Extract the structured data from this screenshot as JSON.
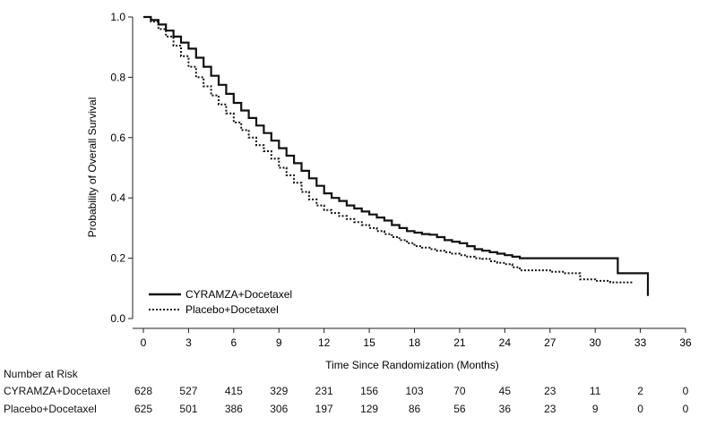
{
  "chart_data": {
    "type": "line",
    "title": "",
    "xlabel": "Time Since Randomization (Months)",
    "ylabel": "Probability of Overall Survival",
    "xlim": [
      0,
      36
    ],
    "ylim": [
      0,
      1.0
    ],
    "x_ticks": [
      0,
      3,
      6,
      9,
      12,
      15,
      18,
      21,
      24,
      27,
      30,
      33,
      36
    ],
    "y_ticks": [
      0.0,
      0.2,
      0.4,
      0.6,
      0.8,
      1.0
    ],
    "y_tick_labels": [
      "0.0",
      "0.2",
      "0.4",
      "0.6",
      "0.8",
      "1.0"
    ],
    "grid": false,
    "legend_position": "bottom-left",
    "series": [
      {
        "name": "CYRAMZA+Docetaxel",
        "style": "solid",
        "color": "#111111",
        "step": true,
        "x": [
          0,
          0.5,
          1,
          1.5,
          2,
          2.5,
          3,
          3.5,
          4,
          4.5,
          5,
          5.5,
          6,
          6.5,
          7,
          7.5,
          8,
          8.5,
          9,
          9.5,
          10,
          10.5,
          11,
          11.5,
          12,
          12.5,
          13,
          13.5,
          14,
          14.5,
          15,
          15.5,
          16,
          16.5,
          17,
          17.5,
          18,
          18.5,
          19,
          19.5,
          20,
          20.5,
          21,
          21.5,
          22,
          22.5,
          23,
          23.5,
          24,
          24.5,
          25,
          26,
          27,
          28,
          29,
          30,
          31.5,
          31.5,
          33.5,
          33.5
        ],
        "y": [
          1.0,
          0.99,
          0.975,
          0.955,
          0.935,
          0.915,
          0.895,
          0.865,
          0.835,
          0.805,
          0.775,
          0.745,
          0.715,
          0.69,
          0.665,
          0.64,
          0.615,
          0.59,
          0.565,
          0.54,
          0.515,
          0.49,
          0.465,
          0.44,
          0.415,
          0.4,
          0.39,
          0.375,
          0.365,
          0.355,
          0.345,
          0.335,
          0.325,
          0.31,
          0.3,
          0.29,
          0.285,
          0.28,
          0.278,
          0.27,
          0.26,
          0.255,
          0.25,
          0.24,
          0.23,
          0.225,
          0.22,
          0.215,
          0.21,
          0.205,
          0.2,
          0.2,
          0.2,
          0.2,
          0.2,
          0.2,
          0.2,
          0.15,
          0.15,
          0.075
        ]
      },
      {
        "name": "Placebo+Docetaxel",
        "style": "dotted",
        "color": "#111111",
        "step": true,
        "x": [
          0,
          0.5,
          1,
          1.5,
          2,
          2.5,
          3,
          3.5,
          4,
          4.5,
          5,
          5.5,
          6,
          6.5,
          7,
          7.5,
          8,
          8.5,
          9,
          9.5,
          10,
          10.5,
          11,
          11.5,
          12,
          12.5,
          13,
          13.5,
          14,
          14.5,
          15,
          15.5,
          16,
          16.5,
          17,
          17.5,
          18,
          18.5,
          19,
          19.5,
          20,
          20.5,
          21,
          21.5,
          22,
          22.5,
          23,
          23.5,
          24,
          24.5,
          25,
          26,
          27,
          28,
          29,
          30,
          31,
          32.5
        ],
        "y": [
          1.0,
          0.985,
          0.96,
          0.935,
          0.905,
          0.87,
          0.835,
          0.8,
          0.77,
          0.74,
          0.71,
          0.68,
          0.65,
          0.625,
          0.6,
          0.575,
          0.555,
          0.53,
          0.5,
          0.475,
          0.45,
          0.42,
          0.395,
          0.375,
          0.36,
          0.35,
          0.34,
          0.33,
          0.32,
          0.31,
          0.3,
          0.29,
          0.28,
          0.27,
          0.26,
          0.25,
          0.24,
          0.235,
          0.23,
          0.225,
          0.22,
          0.215,
          0.21,
          0.205,
          0.2,
          0.198,
          0.19,
          0.185,
          0.18,
          0.17,
          0.16,
          0.16,
          0.155,
          0.15,
          0.13,
          0.125,
          0.12,
          0.12
        ]
      }
    ],
    "risk_table": {
      "title": "Number at Risk",
      "times": [
        0,
        3,
        6,
        9,
        12,
        15,
        18,
        21,
        24,
        27,
        30,
        33,
        36
      ],
      "rows": [
        {
          "label": "CYRAMZA+Docetaxel",
          "counts": [
            "628",
            "527",
            "415",
            "329",
            "231",
            "156",
            "103",
            "70",
            "45",
            "23",
            "11",
            "2",
            "0"
          ]
        },
        {
          "label": "Placebo+Docetaxel",
          "counts": [
            "625",
            "501",
            "386",
            "306",
            "197",
            "129",
            "86",
            "56",
            "36",
            "23",
            "9",
            "0",
            "0"
          ]
        }
      ]
    }
  }
}
